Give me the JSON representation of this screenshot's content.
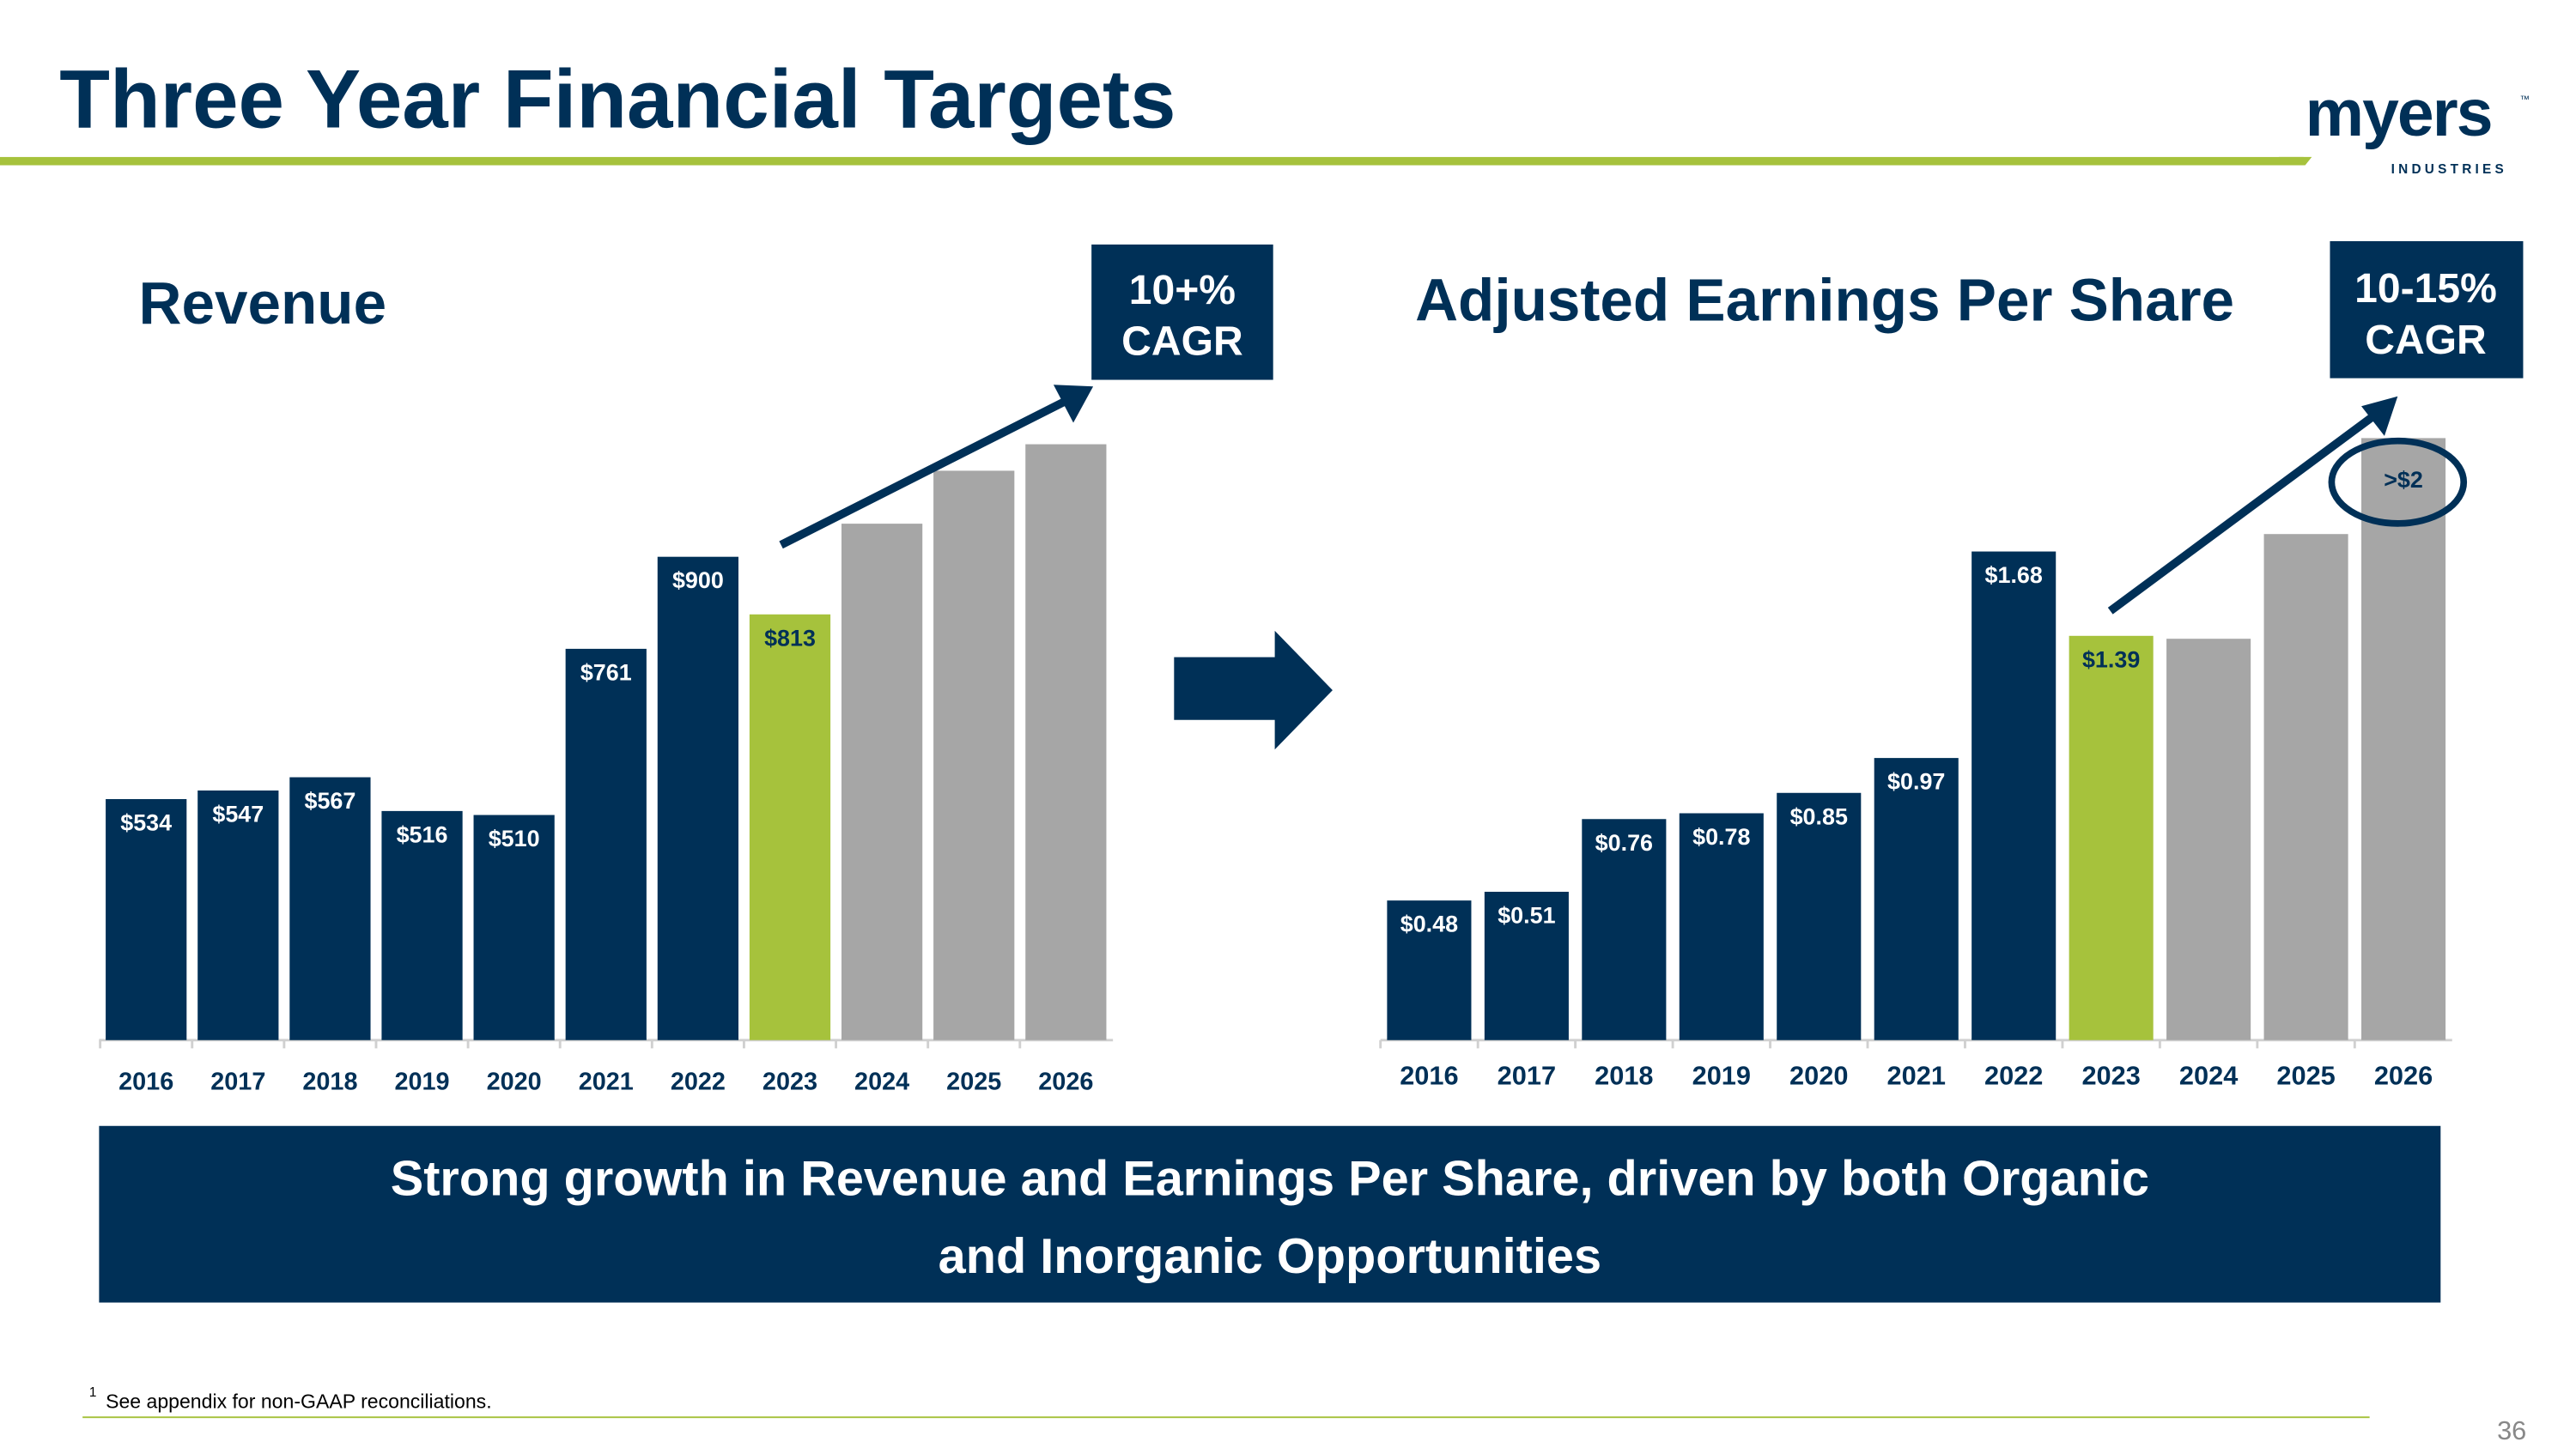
{
  "header": {
    "title": "Three Year Financial Targets",
    "logo": {
      "word": "myers",
      "sub": "INDUSTRIES",
      "tm": "™"
    }
  },
  "colors": {
    "navy": "#003057",
    "green": "#a6c23c",
    "gray": "#a6a6a6",
    "white": "#ffffff"
  },
  "chart_data": [
    {
      "type": "bar",
      "title": "Revenue",
      "categories": [
        "2016",
        "2017",
        "2018",
        "2019",
        "2020",
        "2021",
        "2022",
        "2023",
        "2024",
        "2025",
        "2026"
      ],
      "values": [
        534,
        547,
        567,
        516,
        510,
        761,
        900,
        813,
        950,
        1030,
        1070
      ],
      "labels": [
        "$534",
        "$547",
        "$567",
        "$516",
        "$510",
        "$761",
        "$900",
        "$813",
        "",
        "",
        ""
      ],
      "bar_status": [
        "actual",
        "actual",
        "actual",
        "actual",
        "actual",
        "actual",
        "actual",
        "current",
        "projected",
        "projected",
        "projected"
      ],
      "note": "",
      "ylim": [
        170,
        1080
      ],
      "grid": false,
      "cagr_badge": [
        "10+%",
        "CAGR"
      ]
    },
    {
      "type": "bar",
      "title": "Adjusted Earnings Per Share",
      "categories": [
        "2016",
        "2017",
        "2018",
        "2019",
        "2020",
        "2021",
        "2022",
        "2023",
        "2024",
        "2025",
        "2026"
      ],
      "values": [
        0.48,
        0.51,
        0.76,
        0.78,
        0.85,
        0.97,
        1.68,
        1.39,
        1.38,
        1.74,
        2.07
      ],
      "labels": [
        "$0.48",
        "$0.51",
        "$0.76",
        "$0.78",
        "$0.85",
        "$0.97",
        "$1.68",
        "$1.39",
        "",
        "",
        ">$2"
      ],
      "bar_status": [
        "actual",
        "actual",
        "actual",
        "actual",
        "actual",
        "actual",
        "actual",
        "current",
        "projected",
        "projected",
        "projected"
      ],
      "ylim": [
        0,
        2.1
      ],
      "grid": false,
      "cagr_badge": [
        "10-15%",
        "CAGR"
      ]
    }
  ],
  "banner": {
    "line1": "Strong growth in Revenue and Earnings Per Share, driven by both Organic",
    "line2": "and Inorganic Opportunities"
  },
  "footnote": {
    "mark": "1",
    "text": "See appendix for non-GAAP reconciliations."
  },
  "page_number": "36"
}
